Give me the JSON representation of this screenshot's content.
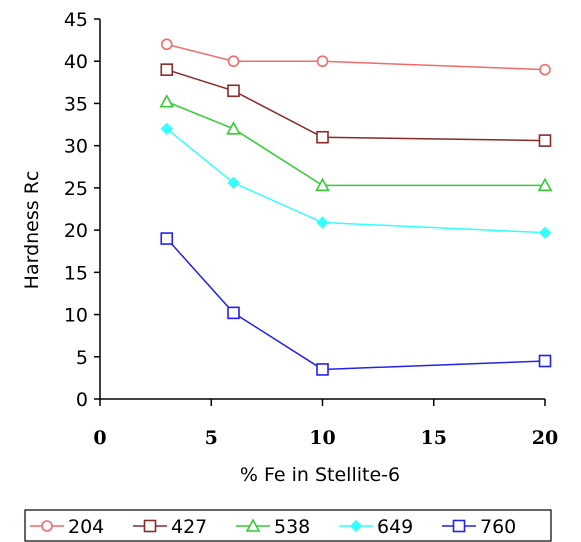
{
  "chart_data": {
    "type": "line",
    "title": "",
    "xlabel": "% Fe in Stellite-6",
    "ylabel": "Hardness Rc",
    "x": [
      3,
      6,
      10,
      20
    ],
    "xlim": [
      0,
      20
    ],
    "ylim": [
      0,
      45
    ],
    "xticks": [
      0,
      5,
      10,
      15,
      20
    ],
    "xtick_labels": [
      "0",
      "5",
      "10",
      "15",
      "20"
    ],
    "yticks": [
      0,
      5,
      10,
      15,
      20,
      25,
      30,
      35,
      40,
      45
    ],
    "grid": false,
    "legend_position": "bottom",
    "series": [
      {
        "name": "204",
        "values": [
          42,
          40,
          40,
          39
        ],
        "color": "#f26b6b",
        "marker": "circle"
      },
      {
        "name": "427",
        "values": [
          39,
          36.5,
          31,
          30.6
        ],
        "color": "#8b2a2a",
        "marker": "square"
      },
      {
        "name": "538",
        "values": [
          35.2,
          32,
          25.3,
          25.3
        ],
        "color": "#33cc33",
        "marker": "triangle"
      },
      {
        "name": "649",
        "values": [
          32,
          25.6,
          20.9,
          19.7
        ],
        "color": "#33ffff",
        "marker": "diamond"
      },
      {
        "name": "760",
        "values": [
          19,
          10.2,
          3.5,
          4.5
        ],
        "color": "#2222ee",
        "marker": "square"
      }
    ]
  }
}
